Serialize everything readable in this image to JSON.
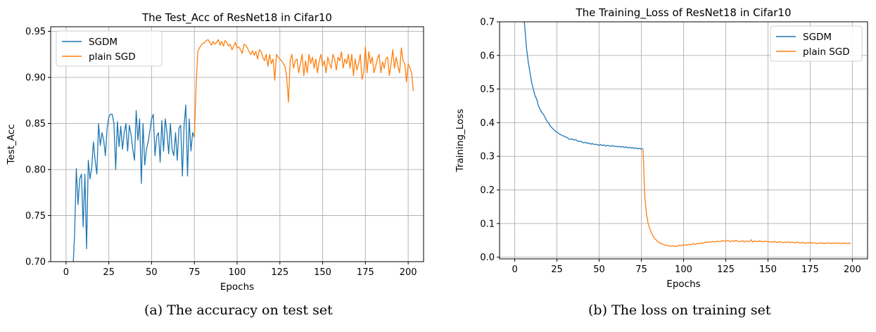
{
  "charts": [
    {
      "type": "line",
      "title": "The Test_Acc of ResNet18 in Cifar10",
      "xlabel": "Epochs",
      "ylabel": "Test_Acc",
      "xlim": [
        -9,
        209
      ],
      "ylim": [
        0.7,
        0.955
      ],
      "xticks": [
        0,
        25,
        50,
        75,
        100,
        125,
        150,
        175,
        200
      ],
      "yticks": [
        0.7,
        0.75,
        0.8,
        0.85,
        0.9,
        0.95
      ],
      "ytick_labels": [
        "0.70",
        "0.75",
        "0.80",
        "0.85",
        "0.90",
        "0.95"
      ],
      "grid": true,
      "legend": "top-left",
      "series": [
        {
          "name": "SGDM",
          "color": "#1f77b4",
          "x_start": 4,
          "values": [
            0.69,
            0.73,
            0.801,
            0.762,
            0.79,
            0.795,
            0.738,
            0.795,
            0.714,
            0.81,
            0.79,
            0.802,
            0.83,
            0.81,
            0.795,
            0.85,
            0.826,
            0.84,
            0.832,
            0.815,
            0.845,
            0.857,
            0.86,
            0.86,
            0.85,
            0.8,
            0.852,
            0.825,
            0.847,
            0.822,
            0.84,
            0.85,
            0.82,
            0.848,
            0.838,
            0.822,
            0.81,
            0.864,
            0.832,
            0.855,
            0.785,
            0.85,
            0.805,
            0.822,
            0.83,
            0.842,
            0.855,
            0.86,
            0.815,
            0.836,
            0.84,
            0.808,
            0.853,
            0.82,
            0.855,
            0.84,
            0.817,
            0.85,
            0.822,
            0.815,
            0.84,
            0.81,
            0.845,
            0.848,
            0.793,
            0.848,
            0.87,
            0.793,
            0.855,
            0.82,
            0.84,
            0.835
          ]
        },
        {
          "name": "plain SGD",
          "color": "#ff7f0e",
          "x_start": 75,
          "values": [
            0.835,
            0.89,
            0.928,
            0.932,
            0.935,
            0.937,
            0.938,
            0.94,
            0.941,
            0.938,
            0.935,
            0.939,
            0.936,
            0.938,
            0.941,
            0.935,
            0.939,
            0.934,
            0.94,
            0.938,
            0.934,
            0.936,
            0.93,
            0.934,
            0.938,
            0.932,
            0.933,
            0.93,
            0.926,
            0.936,
            0.935,
            0.932,
            0.928,
            0.925,
            0.929,
            0.924,
            0.928,
            0.92,
            0.93,
            0.928,
            0.922,
            0.918,
            0.925,
            0.912,
            0.925,
            0.915,
            0.92,
            0.897,
            0.925,
            0.922,
            0.92,
            0.918,
            0.915,
            0.912,
            0.9,
            0.873,
            0.918,
            0.925,
            0.91,
            0.918,
            0.92,
            0.905,
            0.915,
            0.925,
            0.902,
            0.918,
            0.905,
            0.925,
            0.915,
            0.922,
            0.91,
            0.92,
            0.905,
            0.918,
            0.925,
            0.912,
            0.918,
            0.905,
            0.922,
            0.915,
            0.91,
            0.925,
            0.92,
            0.908,
            0.922,
            0.918,
            0.928,
            0.91,
            0.92,
            0.915,
            0.925,
            0.91,
            0.925,
            0.902,
            0.92,
            0.908,
            0.915,
            0.925,
            0.898,
            0.905,
            0.933,
            0.905,
            0.928,
            0.915,
            0.922,
            0.905,
            0.912,
            0.92,
            0.925,
            0.905,
            0.917,
            0.91,
            0.92,
            0.922,
            0.902,
            0.915,
            0.93,
            0.91,
            0.922,
            0.912,
            0.905,
            0.932,
            0.918,
            0.915,
            0.895,
            0.915,
            0.91,
            0.905,
            0.885
          ]
        }
      ]
    },
    {
      "type": "line",
      "title": "The Training_Loss of ResNet18 in Cifar10",
      "xlabel": "Epochs",
      "ylabel": "Training_Loss",
      "xlim": [
        -9,
        209
      ],
      "ylim": [
        -0.005,
        0.7
      ],
      "xticks": [
        0,
        25,
        50,
        75,
        100,
        125,
        150,
        175,
        200
      ],
      "yticks": [
        0.0,
        0.1,
        0.2,
        0.3,
        0.4,
        0.5,
        0.6,
        0.7
      ],
      "ytick_labels": [
        "0.0",
        "0.1",
        "0.2",
        "0.3",
        "0.4",
        "0.5",
        "0.6",
        "0.7"
      ],
      "grid": true,
      "legend": "top-right",
      "series": [
        {
          "name": "SGDM",
          "color": "#1f77b4",
          "x_start": 5,
          "values": [
            0.74,
            0.68,
            0.62,
            0.58,
            0.55,
            0.52,
            0.5,
            0.48,
            0.47,
            0.45,
            0.44,
            0.43,
            0.425,
            0.415,
            0.405,
            0.4,
            0.39,
            0.385,
            0.38,
            0.375,
            0.372,
            0.368,
            0.365,
            0.362,
            0.36,
            0.358,
            0.356,
            0.352,
            0.35,
            0.352,
            0.348,
            0.35,
            0.346,
            0.344,
            0.345,
            0.342,
            0.34,
            0.342,
            0.338,
            0.34,
            0.336,
            0.338,
            0.335,
            0.336,
            0.334,
            0.333,
            0.335,
            0.332,
            0.334,
            0.33,
            0.333,
            0.331,
            0.33,
            0.332,
            0.329,
            0.33,
            0.328,
            0.33,
            0.327,
            0.329,
            0.326,
            0.328,
            0.325,
            0.327,
            0.324,
            0.326,
            0.323,
            0.325,
            0.322,
            0.324,
            0.321,
            0.323
          ]
        },
        {
          "name": "plain SGD",
          "color": "#ff7f0e",
          "x_start": 76,
          "values": [
            0.32,
            0.18,
            0.13,
            0.1,
            0.085,
            0.072,
            0.062,
            0.055,
            0.05,
            0.045,
            0.042,
            0.04,
            0.038,
            0.036,
            0.035,
            0.034,
            0.033,
            0.033,
            0.034,
            0.032,
            0.033,
            0.035,
            0.034,
            0.036,
            0.035,
            0.037,
            0.036,
            0.038,
            0.037,
            0.039,
            0.04,
            0.038,
            0.041,
            0.04,
            0.042,
            0.041,
            0.043,
            0.045,
            0.043,
            0.046,
            0.044,
            0.047,
            0.045,
            0.046,
            0.048,
            0.046,
            0.047,
            0.049,
            0.047,
            0.048,
            0.05,
            0.048,
            0.046,
            0.049,
            0.047,
            0.05,
            0.048,
            0.046,
            0.047,
            0.049,
            0.045,
            0.048,
            0.047,
            0.046,
            0.052,
            0.045,
            0.048,
            0.047,
            0.046,
            0.049,
            0.047,
            0.045,
            0.048,
            0.046,
            0.047,
            0.045,
            0.046,
            0.044,
            0.047,
            0.045,
            0.044,
            0.046,
            0.045,
            0.043,
            0.045,
            0.044,
            0.046,
            0.043,
            0.045,
            0.044,
            0.042,
            0.045,
            0.043,
            0.042,
            0.044,
            0.043,
            0.041,
            0.043,
            0.042,
            0.044,
            0.041,
            0.043,
            0.042,
            0.04,
            0.042,
            0.041,
            0.043,
            0.04,
            0.042,
            0.041,
            0.043,
            0.04,
            0.042,
            0.041,
            0.043,
            0.04,
            0.042,
            0.041,
            0.04,
            0.042,
            0.041,
            0.04,
            0.042,
            0.04
          ]
        }
      ]
    }
  ],
  "captions": [
    "(a) The accuracy on test set",
    "(b) The loss on training set"
  ]
}
